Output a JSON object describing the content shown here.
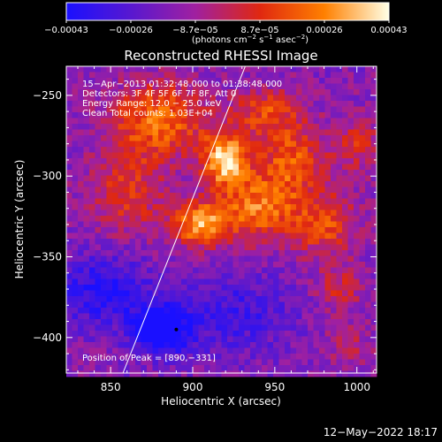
{
  "chart_data": {
    "type": "heatmap",
    "title": "Reconstructed RHESSI Image",
    "xlabel": "Heliocentric X (arcsec)",
    "ylabel": "Heliocentric Y (arcsec)",
    "xlim": [
      823,
      1012
    ],
    "ylim": [
      -422,
      -232
    ],
    "xticks": [
      850,
      900,
      950,
      1000
    ],
    "yticks": [
      -400,
      -350,
      -300,
      -250
    ],
    "xtick_labels": [
      "850",
      "900",
      "950",
      "1000"
    ],
    "ytick_labels": [
      "−400",
      "−350",
      "−300",
      "−250"
    ],
    "colorbar": {
      "label_text": "(photons cm",
      "label_sup1": "−2",
      "label_mid1": " s",
      "label_sup2": "−1",
      "label_mid2": " asec",
      "label_sup3": "−2",
      "label_end": ")",
      "min": -0.00043,
      "max": 0.00043,
      "tick_labels": [
        "−0.00043",
        "−0.00026",
        "−8.7e−05",
        "8.7e−05",
        "0.00026",
        "0.00043"
      ],
      "colors": [
        "#1a10ff",
        "#5818d0",
        "#a020a0",
        "#e02810",
        "#ff8000",
        "#ffffe6"
      ]
    },
    "annotations": {
      "time": "15−Apr−2013 01:32:48.000 to 01:38:48.000",
      "detectors": "Detectors: 3F 4F 5F 6F 7F 8F, Att 0",
      "energy": "Energy Range: 12.0 − 25.0 keV",
      "clean": "Clean    Total counts: 1.03E+04",
      "peak": "Position of Peak = [890,−331]"
    },
    "limb_line": {
      "x": [
        857.5,
        932
      ],
      "y": [
        -422,
        -232
      ]
    },
    "peak_position": [
      890,
      -331
    ],
    "sources": [
      {
        "x": 920,
        "y": -290,
        "amp": 1.0,
        "sx": 10,
        "sy": 12
      },
      {
        "x": 905,
        "y": -330,
        "amp": 0.85,
        "sx": 12,
        "sy": 10
      },
      {
        "x": 880,
        "y": -265,
        "amp": 0.7,
        "sx": 20,
        "sy": 16
      },
      {
        "x": 940,
        "y": -320,
        "amp": 0.7,
        "sx": 16,
        "sy": 14
      },
      {
        "x": 960,
        "y": -290,
        "amp": 0.6,
        "sx": 14,
        "sy": 16
      },
      {
        "x": 980,
        "y": -330,
        "amp": 0.55,
        "sx": 14,
        "sy": 14
      },
      {
        "x": 860,
        "y": -310,
        "amp": 0.45,
        "sx": 16,
        "sy": 20
      },
      {
        "x": 945,
        "y": -260,
        "amp": 0.5,
        "sx": 14,
        "sy": 10
      },
      {
        "x": 990,
        "y": -370,
        "amp": 0.35,
        "sx": 10,
        "sy": 10
      },
      {
        "x": 1000,
        "y": -280,
        "amp": 0.4,
        "sx": 10,
        "sy": 12
      },
      {
        "x": 880,
        "y": -395,
        "amp": -0.9,
        "sx": 12,
        "sy": 10
      },
      {
        "x": 845,
        "y": -370,
        "amp": -0.5,
        "sx": 20,
        "sy": 16
      },
      {
        "x": 925,
        "y": -385,
        "amp": -0.35,
        "sx": 25,
        "sy": 18
      },
      {
        "x": 995,
        "y": -405,
        "amp": 0.25,
        "sx": 10,
        "sy": 8
      }
    ]
  },
  "footer": {
    "date": "12−May−2022 18:17"
  }
}
